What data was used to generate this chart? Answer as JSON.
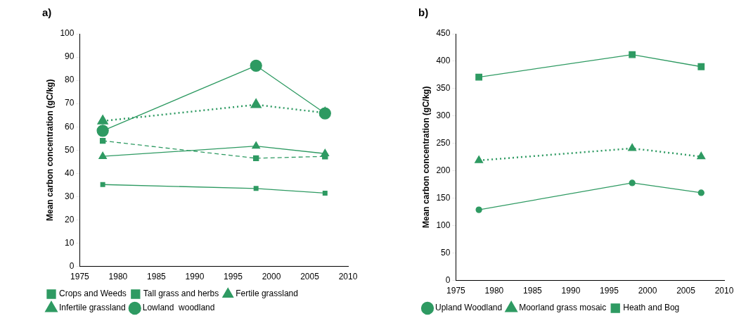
{
  "chart_data": [
    {
      "type": "line",
      "title": "a)",
      "ylabel": "Mean carbon concentration (gC/kg)",
      "x": [
        1978,
        1998,
        2007
      ],
      "xlim": [
        1975,
        2010
      ],
      "xticks": [
        1975,
        1980,
        1985,
        1990,
        1995,
        2000,
        2005,
        2010
      ],
      "ylim": [
        0,
        100
      ],
      "yticks": [
        0,
        10,
        20,
        30,
        40,
        50,
        60,
        70,
        80,
        90,
        100
      ],
      "grid": false,
      "legend": "bottom",
      "series": [
        {
          "name": "Crops and Weeds",
          "color": "#2e9a62",
          "marker": "square",
          "line_style": "solid",
          "values": [
            35.2,
            33.5,
            31.5
          ]
        },
        {
          "name": "Tall grass and herbs",
          "color": "#2e9a62",
          "marker": "square",
          "line_style": "dashed",
          "values": [
            54,
            46.5,
            47.3
          ]
        },
        {
          "name": "Fertile grassland",
          "color": "#2e9a62",
          "marker": "triangle",
          "line_style": "solid",
          "values": [
            47.3,
            51.7,
            48.5
          ]
        },
        {
          "name": "Infertile grassland",
          "color": "#2e9a62",
          "marker": "triangle",
          "line_style": "dotted",
          "values": [
            62.5,
            69.5,
            66
          ]
        },
        {
          "name": "Lowland  woodland",
          "color": "#2e9a62",
          "marker": "circle",
          "line_style": "solid",
          "values": [
            58.3,
            86.3,
            65.8
          ]
        }
      ]
    },
    {
      "type": "line",
      "title": "b)",
      "ylabel": "Mean carbon concentration (gC/kg)",
      "x": [
        1978,
        1998,
        2007
      ],
      "xlim": [
        1975,
        2010
      ],
      "xticks": [
        1975,
        1980,
        1985,
        1990,
        1995,
        2000,
        2005,
        2010
      ],
      "ylim": [
        0,
        450
      ],
      "yticks": [
        0,
        50,
        100,
        150,
        200,
        250,
        300,
        350,
        400,
        450
      ],
      "grid": false,
      "legend": "bottom",
      "series": [
        {
          "name": "Upland Woodland",
          "color": "#2e9a62",
          "marker": "circle",
          "line_style": "solid",
          "values": [
            129,
            178,
            160
          ]
        },
        {
          "name": "Moorland grass mosaic",
          "color": "#2e9a62",
          "marker": "triangle",
          "line_style": "dotted",
          "values": [
            219,
            241,
            226
          ]
        },
        {
          "name": "Heath and Bog",
          "color": "#2e9a62",
          "marker": "square",
          "line_style": "solid",
          "values": [
            371,
            412,
            390
          ]
        }
      ]
    }
  ]
}
